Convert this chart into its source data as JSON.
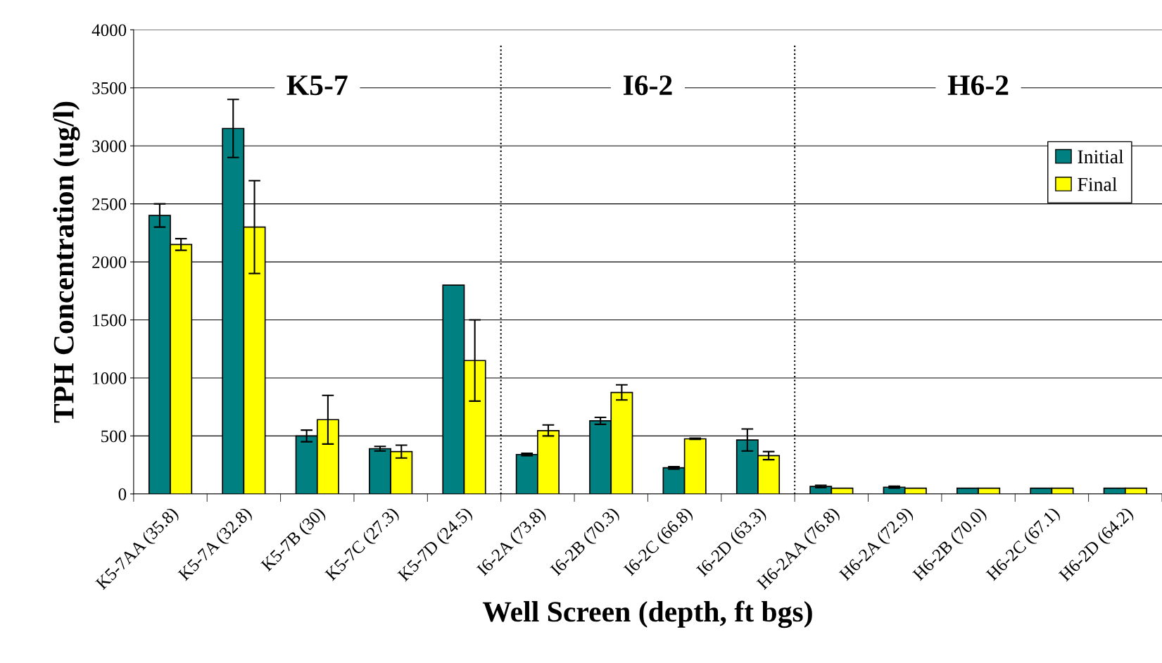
{
  "chart_data": {
    "type": "bar",
    "xlabel": "Well Screen (depth, ft bgs)",
    "ylabel": "TPH Concentration (ug/l)",
    "categories": [
      "K5-7AA (35.8)",
      "K5-7A (32.8)",
      "K5-7B (30)",
      "K5-7C (27.3)",
      "K5-7D (24.5)",
      "I6-2A (73.8)",
      "I6-2B (70.3)",
      "I6-2C (66.8)",
      "I6-2D (63.3)",
      "H6-2AA (76.8)",
      "H6-2A (72.9)",
      "H6-2B (70.0)",
      "H6-2C (67.1)",
      "H6-2D (64.2)"
    ],
    "series": [
      {
        "name": "Initial",
        "color": "#008080",
        "values": [
          2400,
          3150,
          500,
          390,
          1800,
          340,
          630,
          225,
          465,
          65,
          58,
          50,
          50,
          50
        ],
        "errors": [
          [
            2300,
            2500
          ],
          [
            2900,
            3400
          ],
          [
            450,
            550
          ],
          [
            370,
            410
          ],
          null,
          [
            330,
            350
          ],
          [
            600,
            660
          ],
          [
            215,
            235
          ],
          [
            370,
            560
          ],
          [
            55,
            75
          ],
          [
            50,
            66
          ],
          null,
          null,
          null
        ]
      },
      {
        "name": "Final",
        "color": "#ffff00",
        "values": [
          2150,
          2300,
          640,
          365,
          1150,
          545,
          875,
          475,
          330,
          50,
          50,
          50,
          50,
          50
        ],
        "errors": [
          [
            2100,
            2200
          ],
          [
            1900,
            2700
          ],
          [
            430,
            850
          ],
          [
            310,
            420
          ],
          [
            800,
            1500
          ],
          [
            500,
            595
          ],
          [
            810,
            940
          ],
          [
            470,
            480
          ],
          [
            295,
            365
          ],
          null,
          null,
          null,
          null,
          null
        ]
      }
    ],
    "ylim": [
      0,
      4000
    ],
    "yticks": [
      0,
      500,
      1000,
      1500,
      2000,
      2500,
      3000,
      3500,
      4000
    ],
    "annotations": [
      "K5-7",
      "I6-2",
      "H6-2"
    ],
    "grid": "y",
    "legend": "top right"
  }
}
